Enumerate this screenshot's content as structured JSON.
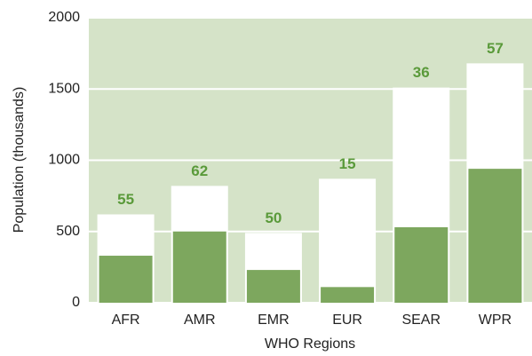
{
  "chart_data": {
    "type": "bar",
    "x_label": "WHO Regions",
    "y_label": "Population (thousands)",
    "categories": [
      "AFR",
      "AMR",
      "EMR",
      "EUR",
      "SEAR",
      "WPR"
    ],
    "series": [
      {
        "color": "#ffffff",
        "values": [
          620,
          820,
          490,
          870,
          1510,
          1680
        ]
      },
      {
        "color": "#7da75e",
        "values": [
          330,
          500,
          230,
          110,
          530,
          940
        ]
      }
    ],
    "percent_labels": [
      55,
      62,
      50,
      15,
      36,
      57
    ],
    "ylim": [
      0,
      2000
    ],
    "yticks": [
      0,
      500,
      1000,
      1500,
      2000
    ],
    "background": "#d5e3c8",
    "grid": true
  }
}
